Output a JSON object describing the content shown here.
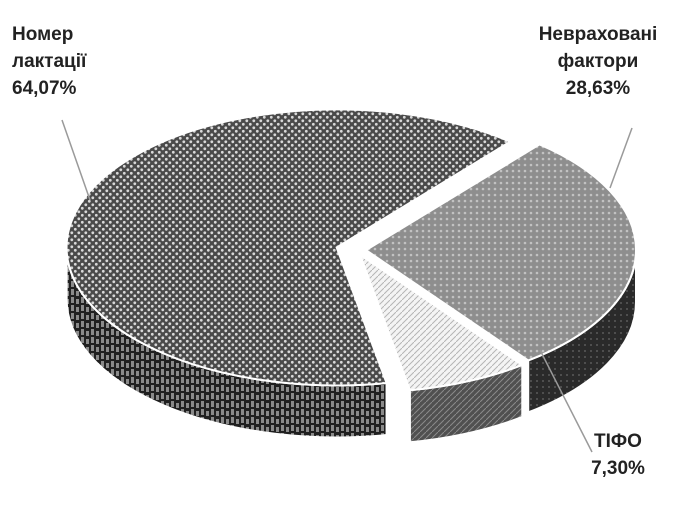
{
  "chart_data": {
    "type": "pie",
    "style": "3d-exploded",
    "legend": "none",
    "categories": [
      "Номер лактації",
      "Неврахованi фактори",
      "ТІФО"
    ],
    "values": [
      64.07,
      28.63,
      7.3
    ],
    "units": "%",
    "value_labels": [
      "64,07%",
      "28,63%",
      "7,30%"
    ],
    "label_lines": [
      [
        "Номер",
        "лактації",
        "64,07%"
      ],
      [
        "Неврахованi",
        "фактори",
        "28,63%"
      ],
      [
        "ТІФО",
        "7,30%"
      ]
    ],
    "colors": [
      "#3c3c3c",
      "#8a8a8a",
      "#efefef"
    ]
  }
}
